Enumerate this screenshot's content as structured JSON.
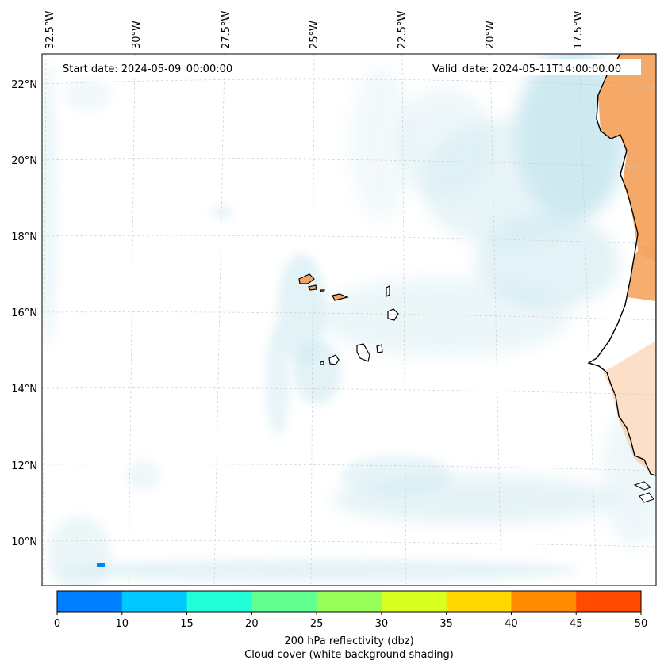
{
  "header": {
    "start_date": "Start date: 2024-05-09_00:00:00",
    "valid_date": "Valid_date: 2024-05-11T14:00:00.00"
  },
  "map": {
    "longitude_labels": [
      "32.5°W",
      "30°W",
      "27.5°W",
      "25°W",
      "22.5°W",
      "20°W",
      "17.5°W"
    ],
    "latitude_labels": [
      "22°N",
      "20°N",
      "18°N",
      "16°N",
      "14°N",
      "12°N",
      "10°N"
    ],
    "colors": {
      "cloud": "#a8d8e6",
      "land": "#f4a460",
      "coast": "#000000",
      "grid": "#c8c8c8"
    }
  },
  "colorbar": {
    "ticks": [
      "0",
      "10",
      "15",
      "20",
      "25",
      "30",
      "35",
      "40",
      "45",
      "50"
    ],
    "colors": [
      "#0080ff",
      "#00c8ff",
      "#20ffd8",
      "#60ff90",
      "#98ff58",
      "#d8ff20",
      "#ffd800",
      "#ff8c00",
      "#ff4a00"
    ],
    "label_line1": "200 hPa reflectivity (dbz)",
    "label_line2": "Cloud cover (white background shading)"
  }
}
